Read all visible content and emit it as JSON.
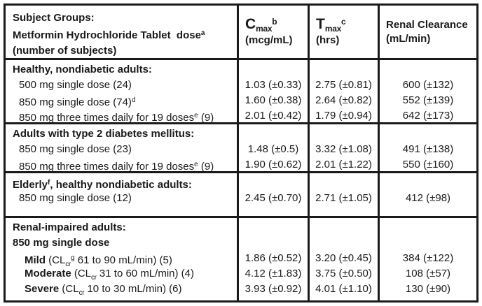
{
  "table": {
    "header": {
      "col1_lines": [
        {
          "pre": "Subject Groups:"
        },
        {
          "pre": "Metformin Hydrochloride Tablet  dose",
          "sup": "a"
        },
        {
          "pre": "(number of subjects)"
        }
      ],
      "col2": {
        "symbol": "C",
        "sub": "max",
        "sup": "b",
        "unit": "(mcg/mL)"
      },
      "col3": {
        "symbol": "T",
        "sub": "max",
        "sup": "c",
        "unit": "(hrs)"
      },
      "col4": {
        "line1": "Renal Clearance",
        "line2": "(mL/min)"
      }
    },
    "sections": [
      {
        "name": "Healthy, nondiabetic adults",
        "label_lines": [
          {
            "pre": "Healthy, nondiabetic adults:"
          },
          {
            "pre": "500 mg single dose (24)"
          },
          {
            "pre": "850 mg single dose (74)",
            "sup": "d"
          },
          {
            "pre": "850 mg three times daily for 19 doses",
            "sup": "e",
            "post": " (9)"
          }
        ],
        "cmax": [
          "",
          "1.03 (±0.33)",
          "1.60 (±0.38)",
          "2.01 (±0.42)"
        ],
        "tmax": [
          "",
          "2.75 (±0.81)",
          "2.64 (±0.82)",
          "1.79 (±0.94)"
        ],
        "renal": [
          "",
          "600 (±132)",
          "552 (±139)",
          "642 (±173)"
        ]
      },
      {
        "name": "Adults with type 2 diabetes mellitus",
        "label_lines": [
          {
            "pre": "Adults with type 2 diabetes mellitus:"
          },
          {
            "pre": "850 mg single dose (23)"
          },
          {
            "pre": "850 mg three times daily for 19 doses",
            "sup": "e",
            "post": " (9)"
          }
        ],
        "cmax": [
          "",
          "1.48 (±0.5)",
          "1.90 (±0.62)"
        ],
        "tmax": [
          "",
          "3.32 (±1.08)",
          "2.01 (±1.22)"
        ],
        "renal": [
          "",
          "491 (±138)",
          "550 (±160)"
        ]
      },
      {
        "name": "Elderly, healthy nondiabetic adults",
        "label_lines": [
          {
            "pre": "Elderly",
            "sup": "f",
            "post": ", healthy nondiabetic adults:"
          },
          {
            "pre": "850 mg single dose (12)"
          }
        ],
        "cmax": [
          "",
          "2.45 (±0.70)"
        ],
        "tmax": [
          "",
          "2.71 (±1.05)"
        ],
        "renal": [
          "",
          "412 (±98)"
        ]
      },
      {
        "name": "Renal-impaired adults",
        "label_lines": [
          {
            "pre": "Renal-impaired adults:"
          },
          {
            "pre": "850 mg single dose"
          },
          {
            "bold": "Mild",
            "pre": " (CL",
            "sub": "cr",
            "sup": "g",
            "post": " 61 to 90 mL/min) (5)"
          },
          {
            "bold": "Moderate",
            "pre": " (CL",
            "sub": "cr",
            "post": " 31 to 60 mL/min) (4)"
          },
          {
            "bold": "Severe",
            "pre": " (CL",
            "sub": "cr",
            "post": " 10 to 30 mL/min) (6)"
          }
        ],
        "cmax": [
          "",
          "",
          "1.86 (±0.52)",
          "4.12 (±1.83)",
          "3.93 (±0.92)"
        ],
        "tmax": [
          "",
          "",
          "3.20 (±0.45)",
          "3.75 (±0.50)",
          "4.01 (±1.10)"
        ],
        "renal": [
          "",
          "",
          "384 (±122)",
          "108 (±57)",
          "130 (±90)"
        ]
      }
    ]
  }
}
